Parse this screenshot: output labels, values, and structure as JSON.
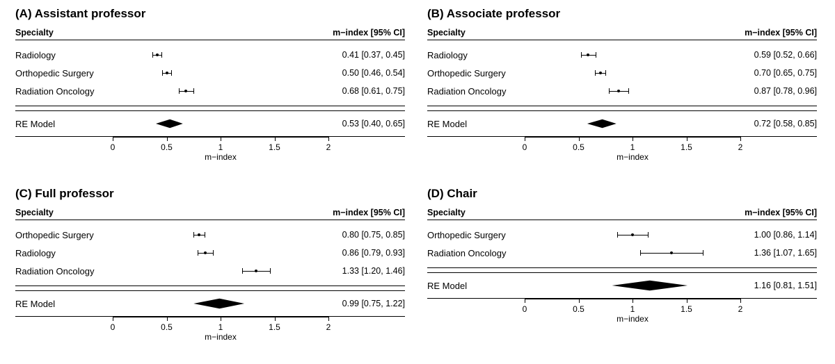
{
  "axis": {
    "min": 0,
    "max": 2,
    "ticks": [
      0,
      0.5,
      1,
      1.5,
      2
    ],
    "tick_labels": [
      "0",
      "0.5",
      "1",
      "1.5",
      "2"
    ],
    "title": "m−index"
  },
  "headers": {
    "left": "Specialty",
    "right": "m−index [95% CI]"
  },
  "re_label": "RE Model",
  "colors": {
    "fg": "#000000",
    "bg": "#ffffff"
  },
  "font": {
    "title_size_pt": 13,
    "label_size_pt": 10,
    "tick_size_pt": 9
  },
  "panels": [
    {
      "id": "A",
      "title": "(A) Assistant professor",
      "rows": [
        {
          "label": "Radiology",
          "est": 0.41,
          "lo": 0.37,
          "hi": 0.45,
          "text": "0.41 [0.37, 0.45]"
        },
        {
          "label": "Orthopedic Surgery",
          "est": 0.5,
          "lo": 0.46,
          "hi": 0.54,
          "text": "0.50 [0.46, 0.54]"
        },
        {
          "label": "Radiation Oncology",
          "est": 0.68,
          "lo": 0.61,
          "hi": 0.75,
          "text": "0.68 [0.61, 0.75]"
        }
      ],
      "re": {
        "est": 0.53,
        "lo": 0.4,
        "hi": 0.65,
        "text": "0.53 [0.40, 0.65]",
        "height": 7
      }
    },
    {
      "id": "B",
      "title": "(B) Associate professor",
      "rows": [
        {
          "label": "Radiology",
          "est": 0.59,
          "lo": 0.52,
          "hi": 0.66,
          "text": "0.59 [0.52, 0.66]"
        },
        {
          "label": "Orthopedic Surgery",
          "est": 0.7,
          "lo": 0.65,
          "hi": 0.75,
          "text": "0.70 [0.65, 0.75]"
        },
        {
          "label": "Radiation Oncology",
          "est": 0.87,
          "lo": 0.78,
          "hi": 0.96,
          "text": "0.87 [0.78, 0.96]"
        }
      ],
      "re": {
        "est": 0.72,
        "lo": 0.58,
        "hi": 0.85,
        "text": "0.72 [0.58, 0.85]",
        "height": 7
      }
    },
    {
      "id": "C",
      "title": "(C) Full professor",
      "rows": [
        {
          "label": "Orthopedic Surgery",
          "est": 0.8,
          "lo": 0.75,
          "hi": 0.85,
          "text": "0.80 [0.75, 0.85]"
        },
        {
          "label": "Radiology",
          "est": 0.86,
          "lo": 0.79,
          "hi": 0.93,
          "text": "0.86 [0.79, 0.93]"
        },
        {
          "label": "Radiation Oncology",
          "est": 1.33,
          "lo": 1.2,
          "hi": 1.46,
          "text": "1.33 [1.20, 1.46]"
        }
      ],
      "re": {
        "est": 0.99,
        "lo": 0.75,
        "hi": 1.22,
        "text": "0.99 [0.75, 1.22]",
        "height": 8
      }
    },
    {
      "id": "D",
      "title": "(D) Chair",
      "rows": [
        {
          "label": "Orthopedic Surgery",
          "est": 1.0,
          "lo": 0.86,
          "hi": 1.14,
          "text": "1.00 [0.86, 1.14]"
        },
        {
          "label": "Radiation Oncology",
          "est": 1.36,
          "lo": 1.07,
          "hi": 1.65,
          "text": "1.36 [1.07, 1.65]"
        }
      ],
      "re": {
        "est": 1.16,
        "lo": 0.81,
        "hi": 1.51,
        "text": "1.16 [0.81, 1.51]",
        "height": 8
      }
    }
  ]
}
